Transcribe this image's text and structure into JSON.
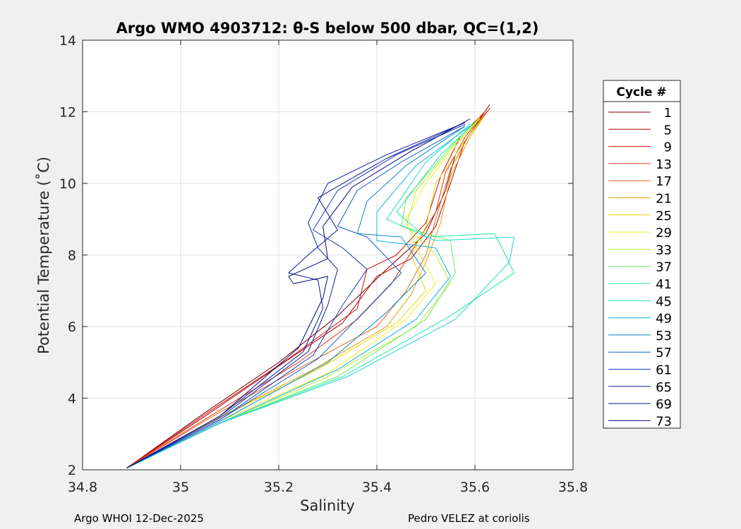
{
  "footer": {
    "left": "Argo WHOI 12-Dec-2025",
    "right": "Pedro VELEZ at coriolis"
  },
  "chart_data": {
    "type": "line",
    "title": "Argo WMO 4903712: θ-S below 500 dbar,  QC=(1,2)",
    "xlabel": "Salinity",
    "ylabel": "Potential Temperature (˚C)",
    "xlim": [
      34.8,
      35.8
    ],
    "ylim": [
      2,
      14
    ],
    "xticks": [
      "34.8",
      "35",
      "35.2",
      "35.4",
      "35.6",
      "35.8"
    ],
    "yticks": [
      "2",
      "4",
      "6",
      "8",
      "10",
      "12",
      "14"
    ],
    "grid": true,
    "legend": {
      "title": "Cycle #",
      "placement": "outside-right",
      "entries": [
        {
          "label": "1",
          "color": "#800000"
        },
        {
          "label": "5",
          "color": "#b30000"
        },
        {
          "label": "9",
          "color": "#d40a0a"
        },
        {
          "label": "13",
          "color": "#e23a1c"
        },
        {
          "label": "17",
          "color": "#e8661e"
        },
        {
          "label": "21",
          "color": "#e0a000"
        },
        {
          "label": "25",
          "color": "#e8d800"
        },
        {
          "label": "29",
          "color": "#f0f020"
        },
        {
          "label": "33",
          "color": "#b8f028"
        },
        {
          "label": "37",
          "color": "#60f060"
        },
        {
          "label": "41",
          "color": "#20e8a0"
        },
        {
          "label": "45",
          "color": "#20d8d0"
        },
        {
          "label": "49",
          "color": "#10b0e8"
        },
        {
          "label": "53",
          "color": "#0a88c8"
        },
        {
          "label": "57",
          "color": "#1060d0"
        },
        {
          "label": "61",
          "color": "#1838c0"
        },
        {
          "label": "65",
          "color": "#1020a8"
        },
        {
          "label": "69",
          "color": "#081890"
        },
        {
          "label": "73",
          "color": "#000a80"
        }
      ]
    },
    "series": [
      {
        "color": "#800000",
        "points": [
          [
            34.89,
            2.05
          ],
          [
            35.05,
            3.6
          ],
          [
            35.2,
            5.0
          ],
          [
            35.32,
            6.3
          ],
          [
            35.42,
            7.6
          ],
          [
            35.5,
            8.6
          ],
          [
            35.54,
            9.8
          ],
          [
            35.56,
            10.8
          ],
          [
            35.6,
            11.6
          ],
          [
            35.63,
            12.2
          ]
        ]
      },
      {
        "color": "#b30000",
        "points": [
          [
            34.89,
            2.05
          ],
          [
            35.05,
            3.5
          ],
          [
            35.2,
            4.9
          ],
          [
            35.33,
            6.1
          ],
          [
            35.4,
            7.4
          ],
          [
            35.47,
            7.9
          ],
          [
            35.52,
            8.8
          ],
          [
            35.55,
            10.0
          ],
          [
            35.58,
            11.2
          ],
          [
            35.63,
            12.1
          ]
        ]
      },
      {
        "color": "#d40a0a",
        "points": [
          [
            34.89,
            2.05
          ],
          [
            35.05,
            3.55
          ],
          [
            35.22,
            5.1
          ],
          [
            35.36,
            6.5
          ],
          [
            35.38,
            7.6
          ],
          [
            35.44,
            8.0
          ],
          [
            35.5,
            8.9
          ],
          [
            35.53,
            10.2
          ],
          [
            35.57,
            11.3
          ],
          [
            35.62,
            12.0
          ]
        ]
      },
      {
        "color": "#e23a1c",
        "points": [
          [
            34.89,
            2.05
          ],
          [
            35.06,
            3.5
          ],
          [
            35.24,
            5.0
          ],
          [
            35.36,
            6.2
          ],
          [
            35.43,
            7.2
          ],
          [
            35.48,
            8.3
          ],
          [
            35.52,
            9.2
          ],
          [
            35.54,
            10.3
          ],
          [
            35.58,
            11.3
          ],
          [
            35.62,
            12.0
          ]
        ]
      },
      {
        "color": "#e8661e",
        "points": [
          [
            34.89,
            2.05
          ],
          [
            35.06,
            3.45
          ],
          [
            35.25,
            4.9
          ],
          [
            35.4,
            6.0
          ],
          [
            35.46,
            7.0
          ],
          [
            35.5,
            8.0
          ],
          [
            35.52,
            9.0
          ],
          [
            35.55,
            10.4
          ],
          [
            35.59,
            11.4
          ],
          [
            35.62,
            11.95
          ]
        ]
      },
      {
        "color": "#e0a000",
        "points": [
          [
            34.89,
            2.05
          ],
          [
            35.07,
            3.4
          ],
          [
            35.27,
            4.8
          ],
          [
            35.42,
            6.0
          ],
          [
            35.47,
            6.9
          ],
          [
            35.5,
            7.8
          ],
          [
            35.53,
            8.9
          ],
          [
            35.55,
            10.2
          ],
          [
            35.59,
            11.3
          ],
          [
            35.62,
            11.9
          ]
        ]
      },
      {
        "color": "#e8d800",
        "points": [
          [
            34.89,
            2.05
          ],
          [
            35.07,
            3.4
          ],
          [
            35.28,
            4.8
          ],
          [
            35.44,
            6.1
          ],
          [
            35.5,
            7.0
          ],
          [
            35.47,
            8.0
          ],
          [
            35.5,
            8.8
          ],
          [
            35.52,
            10.0
          ],
          [
            35.58,
            11.2
          ],
          [
            35.62,
            11.9
          ]
        ]
      },
      {
        "color": "#f0f020",
        "points": [
          [
            34.89,
            2.05
          ],
          [
            35.08,
            3.35
          ],
          [
            35.3,
            4.7
          ],
          [
            35.46,
            6.2
          ],
          [
            35.52,
            7.2
          ],
          [
            35.48,
            8.2
          ],
          [
            35.46,
            9.0
          ],
          [
            35.5,
            10.0
          ],
          [
            35.57,
            11.2
          ],
          [
            35.61,
            11.85
          ]
        ]
      },
      {
        "color": "#b8f028",
        "points": [
          [
            34.89,
            2.05
          ],
          [
            35.08,
            3.3
          ],
          [
            35.3,
            4.6
          ],
          [
            35.48,
            6.0
          ],
          [
            35.55,
            7.2
          ],
          [
            35.52,
            8.0
          ],
          [
            35.46,
            8.8
          ],
          [
            35.48,
            9.8
          ],
          [
            35.56,
            11.1
          ],
          [
            35.61,
            11.8
          ]
        ]
      },
      {
        "color": "#60f060",
        "points": [
          [
            34.89,
            2.05
          ],
          [
            35.08,
            3.3
          ],
          [
            35.32,
            4.6
          ],
          [
            35.5,
            6.2
          ],
          [
            35.56,
            7.5
          ],
          [
            35.55,
            8.4
          ],
          [
            35.45,
            8.8
          ],
          [
            35.46,
            9.6
          ],
          [
            35.55,
            11.0
          ],
          [
            35.6,
            11.75
          ]
        ]
      },
      {
        "color": "#20e8a0",
        "points": [
          [
            34.89,
            2.05
          ],
          [
            35.08,
            3.3
          ],
          [
            35.33,
            4.6
          ],
          [
            35.55,
            6.3
          ],
          [
            35.68,
            7.5
          ],
          [
            35.64,
            8.6
          ],
          [
            35.5,
            8.5
          ],
          [
            35.44,
            9.2
          ],
          [
            35.53,
            10.8
          ],
          [
            35.6,
            11.7
          ]
        ]
      },
      {
        "color": "#20d8d0",
        "points": [
          [
            34.89,
            2.05
          ],
          [
            35.08,
            3.3
          ],
          [
            35.34,
            4.6
          ],
          [
            35.56,
            6.2
          ],
          [
            35.67,
            7.8
          ],
          [
            35.68,
            8.5
          ],
          [
            35.52,
            8.4
          ],
          [
            35.42,
            9.0
          ],
          [
            35.5,
            10.6
          ],
          [
            35.59,
            11.65
          ]
        ]
      },
      {
        "color": "#10b0e8",
        "points": [
          [
            34.89,
            2.05
          ],
          [
            35.08,
            3.3
          ],
          [
            35.32,
            4.8
          ],
          [
            35.48,
            6.2
          ],
          [
            35.55,
            7.4
          ],
          [
            35.52,
            8.2
          ],
          [
            35.4,
            8.4
          ],
          [
            35.4,
            9.2
          ],
          [
            35.48,
            10.5
          ],
          [
            35.59,
            11.6
          ]
        ]
      },
      {
        "color": "#0a88c8",
        "points": [
          [
            34.89,
            2.05
          ],
          [
            35.08,
            3.35
          ],
          [
            35.3,
            5.0
          ],
          [
            35.42,
            6.4
          ],
          [
            35.5,
            7.5
          ],
          [
            35.45,
            8.5
          ],
          [
            35.36,
            8.6
          ],
          [
            35.38,
            9.5
          ],
          [
            35.46,
            10.5
          ],
          [
            35.58,
            11.6
          ]
        ]
      },
      {
        "color": "#1060d0",
        "points": [
          [
            34.89,
            2.05
          ],
          [
            35.08,
            3.4
          ],
          [
            35.28,
            5.1
          ],
          [
            35.38,
            6.5
          ],
          [
            35.45,
            7.5
          ],
          [
            35.38,
            8.5
          ],
          [
            35.32,
            8.8
          ],
          [
            35.36,
            9.8
          ],
          [
            35.45,
            10.6
          ],
          [
            35.58,
            11.6
          ]
        ]
      },
      {
        "color": "#1838c0",
        "points": [
          [
            34.89,
            2.05
          ],
          [
            35.08,
            3.4
          ],
          [
            35.27,
            5.2
          ],
          [
            35.33,
            6.6
          ],
          [
            35.38,
            7.6
          ],
          [
            35.33,
            8.2
          ],
          [
            35.27,
            8.7
          ],
          [
            35.32,
            9.8
          ],
          [
            35.44,
            10.8
          ],
          [
            35.58,
            11.65
          ]
        ]
      },
      {
        "color": "#1020a8",
        "points": [
          [
            34.89,
            2.05
          ],
          [
            35.08,
            3.45
          ],
          [
            35.26,
            5.3
          ],
          [
            35.3,
            6.6
          ],
          [
            35.32,
            7.6
          ],
          [
            35.28,
            8.2
          ],
          [
            35.26,
            8.9
          ],
          [
            35.3,
            10.0
          ],
          [
            35.42,
            10.8
          ],
          [
            35.58,
            11.7
          ]
        ]
      },
      {
        "color": "#081890",
        "points": [
          [
            34.89,
            2.05
          ],
          [
            35.08,
            3.5
          ],
          [
            35.25,
            5.3
          ],
          [
            35.29,
            6.5
          ],
          [
            35.28,
            7.3
          ],
          [
            35.22,
            7.5
          ],
          [
            35.26,
            8.0
          ],
          [
            35.32,
            8.7
          ],
          [
            35.28,
            9.6
          ],
          [
            35.42,
            10.7
          ],
          [
            35.58,
            11.7
          ]
        ]
      },
      {
        "color": "#000a80",
        "points": [
          [
            34.89,
            2.05
          ],
          [
            35.08,
            3.5
          ],
          [
            35.24,
            5.4
          ],
          [
            35.29,
            6.8
          ],
          [
            35.3,
            7.4
          ],
          [
            35.23,
            7.2
          ],
          [
            35.22,
            7.4
          ],
          [
            35.3,
            7.9
          ],
          [
            35.29,
            8.8
          ],
          [
            35.35,
            9.9
          ],
          [
            35.47,
            10.9
          ],
          [
            35.59,
            11.8
          ]
        ]
      }
    ]
  }
}
